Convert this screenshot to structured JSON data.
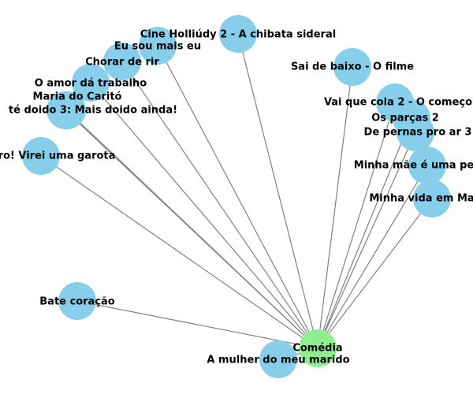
{
  "graph": {
    "center": {
      "id": "comedia",
      "label": "Comédia",
      "color": "#90ee90"
    },
    "node_color": "#87ceeb",
    "edge_color": "#808080",
    "nodes": [
      {
        "id": "cine-holliudy-2",
        "label": "Cine Holliúdy 2 - A chibata sideral"
      },
      {
        "id": "eu-sou-mais-eu",
        "label": "Eu sou mais eu"
      },
      {
        "id": "chorar-de-rir",
        "label": "Chorar de rir"
      },
      {
        "id": "o-amor-da-trabalho",
        "label": "O amor dá trabalho"
      },
      {
        "id": "maria-do-carito",
        "label": "Maria do Caritó"
      },
      {
        "id": "te-doido-3",
        "label": "té doido 3: Mais doido ainda!"
      },
      {
        "id": "virei-uma-garota",
        "label": "ro! Virei uma garota"
      },
      {
        "id": "sai-de-baixo",
        "label": "Sai de baixo - O filme"
      },
      {
        "id": "vai-que-cola-2",
        "label": "Vai que cola 2 - O começo"
      },
      {
        "id": "os-parcas-2",
        "label": "Os parças 2"
      },
      {
        "id": "de-pernas-pro-ar-3",
        "label": "De pernas pro ar 3"
      },
      {
        "id": "minha-mae-e-uma-peca",
        "label": "Minha mãe é uma pe"
      },
      {
        "id": "minha-vida-em-marte",
        "label": "Minha vida em Ma"
      },
      {
        "id": "bate-coracao",
        "label": "Bate coração"
      },
      {
        "id": "a-mulher-do-meu-marido",
        "label": "A mulher do meu marido"
      }
    ]
  }
}
